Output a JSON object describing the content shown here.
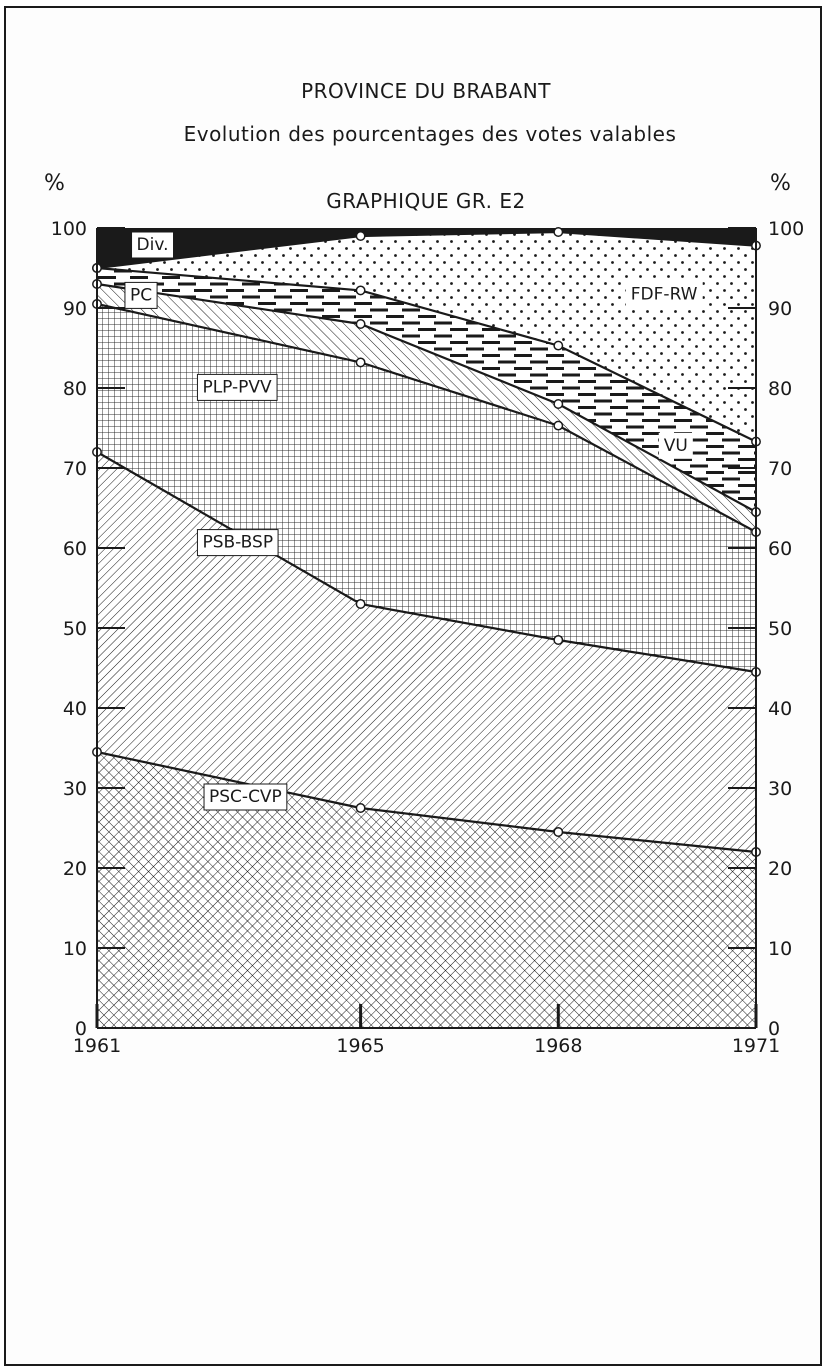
{
  "chart_data": {
    "type": "area",
    "stacked": true,
    "title": "PROVINCE DU BRABANT",
    "subtitle": "Evolution des pourcentages des votes valables",
    "chart_id": "GRAPHIQUE GR. E2",
    "y_unit_left": "%",
    "y_unit_right": "%",
    "x": [
      1961,
      1965,
      1968,
      1971
    ],
    "x_tick_labels": [
      "1961",
      "1965",
      "1968",
      "1971"
    ],
    "ylim": [
      0,
      100
    ],
    "y_ticks": [
      0,
      10,
      20,
      30,
      40,
      50,
      60,
      70,
      80,
      90,
      100
    ],
    "cumulative_boundaries": [
      {
        "name": "PSC-CVP",
        "values": [
          34.5,
          27.5,
          24.5,
          22.0
        ]
      },
      {
        "name": "PSB-BSP",
        "values": [
          72.0,
          53.0,
          48.5,
          44.5
        ]
      },
      {
        "name": "PLP-PVV",
        "values": [
          90.5,
          83.2,
          75.3,
          62.0
        ]
      },
      {
        "name": "PC",
        "values": [
          93.0,
          88.0,
          78.0,
          64.5
        ]
      },
      {
        "name": "VU",
        "values": [
          95.0,
          92.2,
          85.3,
          73.3
        ]
      },
      {
        "name": "FDF-RW",
        "values": [
          95.0,
          99.0,
          99.5,
          97.8
        ]
      },
      {
        "name": "Div.",
        "values": [
          100,
          100,
          100,
          100
        ]
      }
    ],
    "series": [
      {
        "name": "PSC-CVP",
        "values": [
          34.5,
          27.5,
          24.5,
          22.0
        ]
      },
      {
        "name": "PSB-BSP",
        "values": [
          37.5,
          25.5,
          24.0,
          22.5
        ]
      },
      {
        "name": "PLP-PVV",
        "values": [
          18.5,
          30.2,
          26.8,
          17.5
        ]
      },
      {
        "name": "PC",
        "values": [
          2.5,
          4.8,
          2.7,
          2.5
        ]
      },
      {
        "name": "VU",
        "values": [
          2.0,
          4.2,
          7.3,
          8.8
        ]
      },
      {
        "name": "FDF-RW",
        "values": [
          0.0,
          6.8,
          14.2,
          24.5
        ]
      },
      {
        "name": "Div.",
        "values": [
          5.0,
          1.0,
          0.5,
          2.2
        ]
      }
    ],
    "labels": [
      {
        "text": "PSC-CVP",
        "series": "PSC-CVP"
      },
      {
        "text": "PSB-BSP",
        "series": "PSB-BSP"
      },
      {
        "text": "PLP-PVV",
        "series": "PLP-PVV"
      },
      {
        "text": "PC",
        "series": "PC"
      },
      {
        "text": "VU",
        "series": "VU"
      },
      {
        "text": "FDF-RW",
        "series": "FDF-RW"
      },
      {
        "text": "Div.",
        "series": "Div."
      }
    ],
    "grid": false,
    "colors": {
      "ink": "#1a1a1a",
      "paper": "#ffffff"
    }
  }
}
